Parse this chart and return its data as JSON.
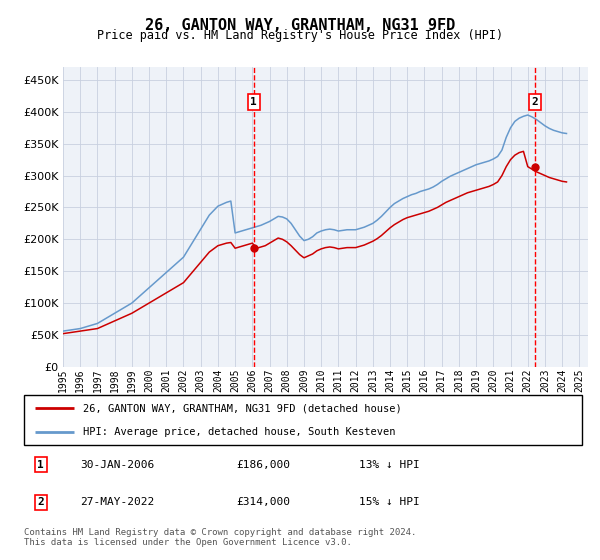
{
  "title": "26, GANTON WAY, GRANTHAM, NG31 9FD",
  "subtitle": "Price paid vs. HM Land Registry's House Price Index (HPI)",
  "yticks": [
    0,
    50000,
    100000,
    150000,
    200000,
    250000,
    300000,
    350000,
    400000,
    450000
  ],
  "ylim": [
    0,
    470000
  ],
  "plot_bg_color": "#eef2f8",
  "grid_color": "#c8d0e0",
  "hpi_color": "#6699cc",
  "price_color": "#cc0000",
  "purchase1_date_x": 2006.08,
  "purchase1_price": 186000,
  "purchase2_date_x": 2022.42,
  "purchase2_price": 314000,
  "legend_label1": "26, GANTON WAY, GRANTHAM, NG31 9FD (detached house)",
  "legend_label2": "HPI: Average price, detached house, South Kesteven",
  "note1_num": "1",
  "note1_date": "30-JAN-2006",
  "note1_price": "£186,000",
  "note1_pct": "13% ↓ HPI",
  "note2_num": "2",
  "note2_date": "27-MAY-2022",
  "note2_price": "£314,000",
  "note2_pct": "15% ↓ HPI",
  "footer": "Contains HM Land Registry data © Crown copyright and database right 2024.\nThis data is licensed under the Open Government Licence v3.0.",
  "hpi_x": [
    1995,
    1995.25,
    1995.5,
    1995.75,
    1996,
    1996.25,
    1996.5,
    1996.75,
    1997,
    1997.25,
    1997.5,
    1997.75,
    1998,
    1998.25,
    1998.5,
    1998.75,
    1999,
    1999.25,
    1999.5,
    1999.75,
    2000,
    2000.25,
    2000.5,
    2000.75,
    2001,
    2001.25,
    2001.5,
    2001.75,
    2002,
    2002.25,
    2002.5,
    2002.75,
    2003,
    2003.25,
    2003.5,
    2003.75,
    2004,
    2004.25,
    2004.5,
    2004.75,
    2005,
    2005.25,
    2005.5,
    2005.75,
    2006,
    2006.25,
    2006.5,
    2006.75,
    2007,
    2007.25,
    2007.5,
    2007.75,
    2008,
    2008.25,
    2008.5,
    2008.75,
    2009,
    2009.25,
    2009.5,
    2009.75,
    2010,
    2010.25,
    2010.5,
    2010.75,
    2011,
    2011.25,
    2011.5,
    2011.75,
    2012,
    2012.25,
    2012.5,
    2012.75,
    2013,
    2013.25,
    2013.5,
    2013.75,
    2014,
    2014.25,
    2014.5,
    2014.75,
    2015,
    2015.25,
    2015.5,
    2015.75,
    2016,
    2016.25,
    2016.5,
    2016.75,
    2017,
    2017.25,
    2017.5,
    2017.75,
    2018,
    2018.25,
    2018.5,
    2018.75,
    2019,
    2019.25,
    2019.5,
    2019.75,
    2020,
    2020.25,
    2020.5,
    2020.75,
    2021,
    2021.25,
    2021.5,
    2021.75,
    2022,
    2022.25,
    2022.5,
    2022.75,
    2023,
    2023.25,
    2023.5,
    2023.75,
    2024,
    2024.25
  ],
  "hpi_y": [
    56000,
    57000,
    58000,
    59000,
    60000,
    62000,
    64000,
    66000,
    68000,
    72000,
    76000,
    80000,
    84000,
    88000,
    92000,
    96000,
    100000,
    106000,
    112000,
    118000,
    124000,
    130000,
    136000,
    142000,
    148000,
    154000,
    160000,
    166000,
    172000,
    183000,
    194000,
    205000,
    216000,
    227000,
    238000,
    245000,
    252000,
    255000,
    258000,
    260000,
    210000,
    212000,
    214000,
    216000,
    218000,
    220000,
    222000,
    225000,
    228000,
    232000,
    236000,
    235000,
    232000,
    225000,
    215000,
    205000,
    198000,
    200000,
    204000,
    210000,
    213000,
    215000,
    216000,
    215000,
    213000,
    214000,
    215000,
    215000,
    215000,
    217000,
    219000,
    222000,
    225000,
    230000,
    236000,
    243000,
    250000,
    256000,
    260000,
    264000,
    267000,
    270000,
    272000,
    275000,
    277000,
    279000,
    282000,
    286000,
    291000,
    295000,
    299000,
    302000,
    305000,
    308000,
    311000,
    314000,
    317000,
    319000,
    321000,
    323000,
    326000,
    330000,
    340000,
    360000,
    375000,
    385000,
    390000,
    393000,
    395000,
    392000,
    388000,
    383000,
    378000,
    374000,
    371000,
    369000,
    367000,
    366000
  ],
  "price_x": [
    1995,
    1995.25,
    1995.5,
    1995.75,
    1996,
    1996.25,
    1996.5,
    1996.75,
    1997,
    1997.25,
    1997.5,
    1997.75,
    1998,
    1998.25,
    1998.5,
    1998.75,
    1999,
    1999.25,
    1999.5,
    1999.75,
    2000,
    2000.25,
    2000.5,
    2000.75,
    2001,
    2001.25,
    2001.5,
    2001.75,
    2002,
    2002.25,
    2002.5,
    2002.75,
    2003,
    2003.25,
    2003.5,
    2003.75,
    2004,
    2004.25,
    2004.5,
    2004.75,
    2005,
    2005.25,
    2005.5,
    2005.75,
    2006,
    2006.25,
    2006.5,
    2006.75,
    2007,
    2007.25,
    2007.5,
    2007.75,
    2008,
    2008.25,
    2008.5,
    2008.75,
    2009,
    2009.25,
    2009.5,
    2009.75,
    2010,
    2010.25,
    2010.5,
    2010.75,
    2011,
    2011.25,
    2011.5,
    2011.75,
    2012,
    2012.25,
    2012.5,
    2012.75,
    2013,
    2013.25,
    2013.5,
    2013.75,
    2014,
    2014.25,
    2014.5,
    2014.75,
    2015,
    2015.25,
    2015.5,
    2015.75,
    2016,
    2016.25,
    2016.5,
    2016.75,
    2017,
    2017.25,
    2017.5,
    2017.75,
    2018,
    2018.25,
    2018.5,
    2018.75,
    2019,
    2019.25,
    2019.5,
    2019.75,
    2020,
    2020.25,
    2020.5,
    2020.75,
    2021,
    2021.25,
    2021.5,
    2021.75,
    2022,
    2022.25,
    2022.5,
    2022.75,
    2023,
    2023.25,
    2023.5,
    2023.75,
    2024,
    2024.25
  ],
  "price_y": [
    52000,
    53000,
    54000,
    55000,
    56000,
    57000,
    58000,
    59000,
    60000,
    63000,
    66000,
    69000,
    72000,
    75000,
    78000,
    81000,
    84000,
    88000,
    92000,
    96000,
    100000,
    104000,
    108000,
    112000,
    116000,
    120000,
    124000,
    128000,
    132000,
    140000,
    148000,
    156000,
    164000,
    172000,
    180000,
    185000,
    190000,
    192000,
    194000,
    195000,
    186000,
    188000,
    190000,
    192000,
    194000,
    186000,
    188000,
    190000,
    194000,
    198000,
    202000,
    200000,
    196000,
    190000,
    183000,
    176000,
    171000,
    174000,
    177000,
    182000,
    185000,
    187000,
    188000,
    187000,
    185000,
    186000,
    187000,
    187000,
    187000,
    189000,
    191000,
    194000,
    197000,
    201000,
    206000,
    212000,
    218000,
    223000,
    227000,
    231000,
    234000,
    236000,
    238000,
    240000,
    242000,
    244000,
    247000,
    250000,
    254000,
    258000,
    261000,
    264000,
    267000,
    270000,
    273000,
    275000,
    277000,
    279000,
    281000,
    283000,
    286000,
    290000,
    300000,
    314000,
    325000,
    332000,
    336000,
    338000,
    314000,
    310000,
    306000,
    303000,
    300000,
    297000,
    295000,
    293000,
    291000,
    290000
  ],
  "xlim": [
    1995,
    2025.5
  ],
  "xticks": [
    1995,
    1996,
    1997,
    1998,
    1999,
    2000,
    2001,
    2002,
    2003,
    2004,
    2005,
    2006,
    2007,
    2008,
    2009,
    2010,
    2011,
    2012,
    2013,
    2014,
    2015,
    2016,
    2017,
    2018,
    2019,
    2020,
    2021,
    2022,
    2023,
    2024,
    2025
  ]
}
